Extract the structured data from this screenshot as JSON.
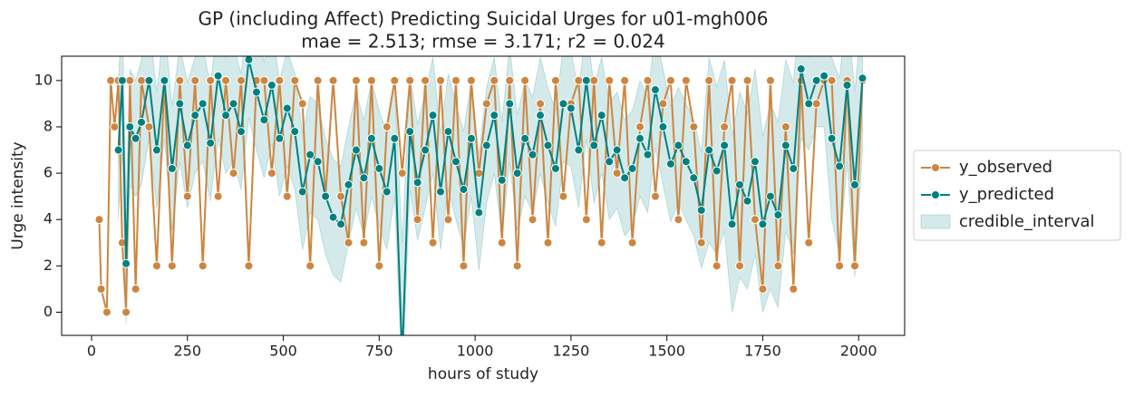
{
  "chart_data": {
    "type": "line",
    "title": "GP (including Affect) Predicting Suicidal Urges for u01-mgh006",
    "subtitle": "mae = 2.513; rmse = 3.171; r2 = 0.024",
    "x_label": "hours of study",
    "y_label": "Urge intensity",
    "xlim": [
      -78,
      2120
    ],
    "ylim": [
      -1,
      11.05
    ],
    "xticks": [
      0,
      250,
      500,
      750,
      1000,
      1250,
      1500,
      1750,
      2000
    ],
    "yticks": [
      0,
      2,
      4,
      6,
      8,
      10
    ],
    "grid": false,
    "legend": "outside right",
    "x": [
      20,
      25,
      40,
      50,
      60,
      70,
      80,
      90,
      100,
      115,
      130,
      150,
      170,
      190,
      210,
      230,
      250,
      270,
      290,
      310,
      330,
      350,
      370,
      390,
      410,
      430,
      450,
      470,
      490,
      510,
      530,
      550,
      570,
      590,
      610,
      630,
      650,
      670,
      690,
      710,
      730,
      750,
      770,
      790,
      810,
      830,
      850,
      870,
      890,
      910,
      930,
      950,
      970,
      990,
      1010,
      1030,
      1050,
      1070,
      1090,
      1110,
      1130,
      1150,
      1170,
      1190,
      1210,
      1230,
      1250,
      1270,
      1290,
      1310,
      1330,
      1350,
      1370,
      1390,
      1410,
      1430,
      1450,
      1470,
      1490,
      1510,
      1530,
      1550,
      1570,
      1590,
      1610,
      1630,
      1650,
      1670,
      1690,
      1710,
      1730,
      1750,
      1770,
      1790,
      1810,
      1830,
      1850,
      1870,
      1890,
      1910,
      1930,
      1950,
      1970,
      1990,
      2010
    ],
    "series": [
      {
        "name": "y_observed",
        "color": "#cd853f",
        "values": [
          4,
          1,
          0,
          10,
          8,
          10,
          3,
          0,
          10,
          1,
          10,
          8,
          2,
          10,
          2,
          10,
          5,
          10,
          2,
          10,
          5,
          10,
          6,
          10,
          2,
          10,
          10,
          6,
          10,
          5,
          10,
          9,
          2,
          10,
          5,
          10,
          5,
          3,
          10,
          3,
          10,
          2,
          8,
          10,
          6,
          10,
          4,
          10,
          3,
          10,
          4,
          10,
          2,
          10,
          6,
          9,
          10,
          3,
          10,
          2,
          10,
          4,
          9,
          3,
          10,
          5,
          9,
          10,
          4,
          10,
          3,
          10,
          6,
          10,
          3,
          8,
          10,
          5,
          9,
          10,
          4,
          10,
          8,
          3,
          10,
          2,
          8,
          10,
          2,
          10,
          4,
          1,
          10,
          2,
          8,
          1,
          10,
          3,
          9,
          10,
          10,
          2,
          10,
          2,
          10
        ]
      },
      {
        "name": "y_predicted",
        "color": "#008080",
        "values": [
          null,
          null,
          null,
          null,
          null,
          7,
          10,
          2.1,
          8,
          7.5,
          8.2,
          10,
          7,
          10,
          6.2,
          9,
          7.2,
          8.5,
          9,
          7.3,
          10.2,
          8.5,
          9,
          7.8,
          10.9,
          9.5,
          8.3,
          9.8,
          7.5,
          8.8,
          7.8,
          5.2,
          6.8,
          6.5,
          5,
          4.1,
          3.8,
          5.5,
          7,
          5.8,
          7.5,
          6.2,
          5.2,
          7.5,
          -2,
          7.8,
          5.6,
          7,
          8.5,
          5.2,
          7.8,
          6.5,
          5.3,
          7.5,
          4.3,
          7.2,
          8.5,
          5.7,
          9,
          6,
          7.5,
          6.8,
          8.5,
          7.2,
          6.2,
          9,
          8.8,
          7,
          10,
          7.2,
          8.5,
          6.5,
          7,
          5.8,
          6.2,
          7.5,
          6.8,
          9.6,
          8,
          6.4,
          7.2,
          6.5,
          5.8,
          4.4,
          7,
          6.1,
          7.2,
          3.8,
          5.5,
          4.8,
          6.5,
          3.8,
          5,
          4.2,
          7.2,
          6.2,
          10.5,
          9,
          10,
          10.2,
          7.5,
          6.3,
          9.8,
          5.5,
          10.1
        ]
      },
      {
        "name": "credible_interval",
        "color": "#008080",
        "lower": [
          null,
          null,
          null,
          null,
          null,
          4,
          7,
          -0.5,
          5.5,
          5,
          5.5,
          7.5,
          4.5,
          7.5,
          3.5,
          6.5,
          4.5,
          6,
          6.5,
          4.8,
          7.5,
          6,
          6.5,
          5.3,
          8.4,
          7,
          5.8,
          7.3,
          5,
          6.3,
          5.3,
          2.7,
          4.3,
          4,
          2.5,
          1.6,
          1.3,
          3,
          4.5,
          3.3,
          5,
          3.7,
          2.7,
          5,
          -3,
          5.3,
          3.1,
          4.5,
          6,
          2.7,
          5.3,
          4,
          2.8,
          5,
          1.8,
          4.7,
          6,
          3.2,
          6.5,
          3.5,
          5,
          4.3,
          6,
          4.7,
          3.7,
          6.5,
          6.3,
          4.5,
          7.5,
          4.7,
          6,
          4,
          4.5,
          3.3,
          3.7,
          5,
          4.3,
          7.1,
          5.5,
          3.9,
          4.7,
          4,
          3.3,
          1.9,
          3,
          2.5,
          3.5,
          0,
          1.5,
          1,
          2.5,
          0,
          1,
          0.2,
          3.5,
          2.5,
          7.5,
          7,
          8,
          8,
          4,
          2.5,
          6.5,
          1.5,
          7
        ],
        "upper": [
          null,
          null,
          null,
          null,
          null,
          10,
          13,
          4.6,
          10.5,
          10,
          10.9,
          12.5,
          9.5,
          12.5,
          8.9,
          11.5,
          9.9,
          11,
          11.5,
          9.8,
          12.9,
          11,
          11.5,
          10.3,
          13.4,
          12,
          10.8,
          12.3,
          10,
          11.3,
          10.3,
          7.7,
          9.3,
          9,
          7.5,
          6.6,
          6.3,
          8,
          9.5,
          8.3,
          10,
          8.7,
          7.7,
          10,
          3,
          10.3,
          8.1,
          9.5,
          11,
          7.7,
          10.3,
          9,
          7.8,
          10,
          6.8,
          9.7,
          11,
          8.2,
          11.5,
          8.5,
          10,
          9.3,
          11,
          9.7,
          8.7,
          11.5,
          11.3,
          9.5,
          12.5,
          9.7,
          11,
          9,
          9.5,
          8.3,
          8.7,
          10,
          9.3,
          12.1,
          10.5,
          8.9,
          9.7,
          9,
          8.3,
          6.9,
          11,
          9.7,
          10.9,
          7.6,
          9.5,
          8.6,
          10.5,
          7.6,
          9,
          8.2,
          10.9,
          9.9,
          13.5,
          11,
          12,
          12.4,
          11,
          10.1,
          13.1,
          9.5,
          13.2
        ]
      }
    ]
  }
}
